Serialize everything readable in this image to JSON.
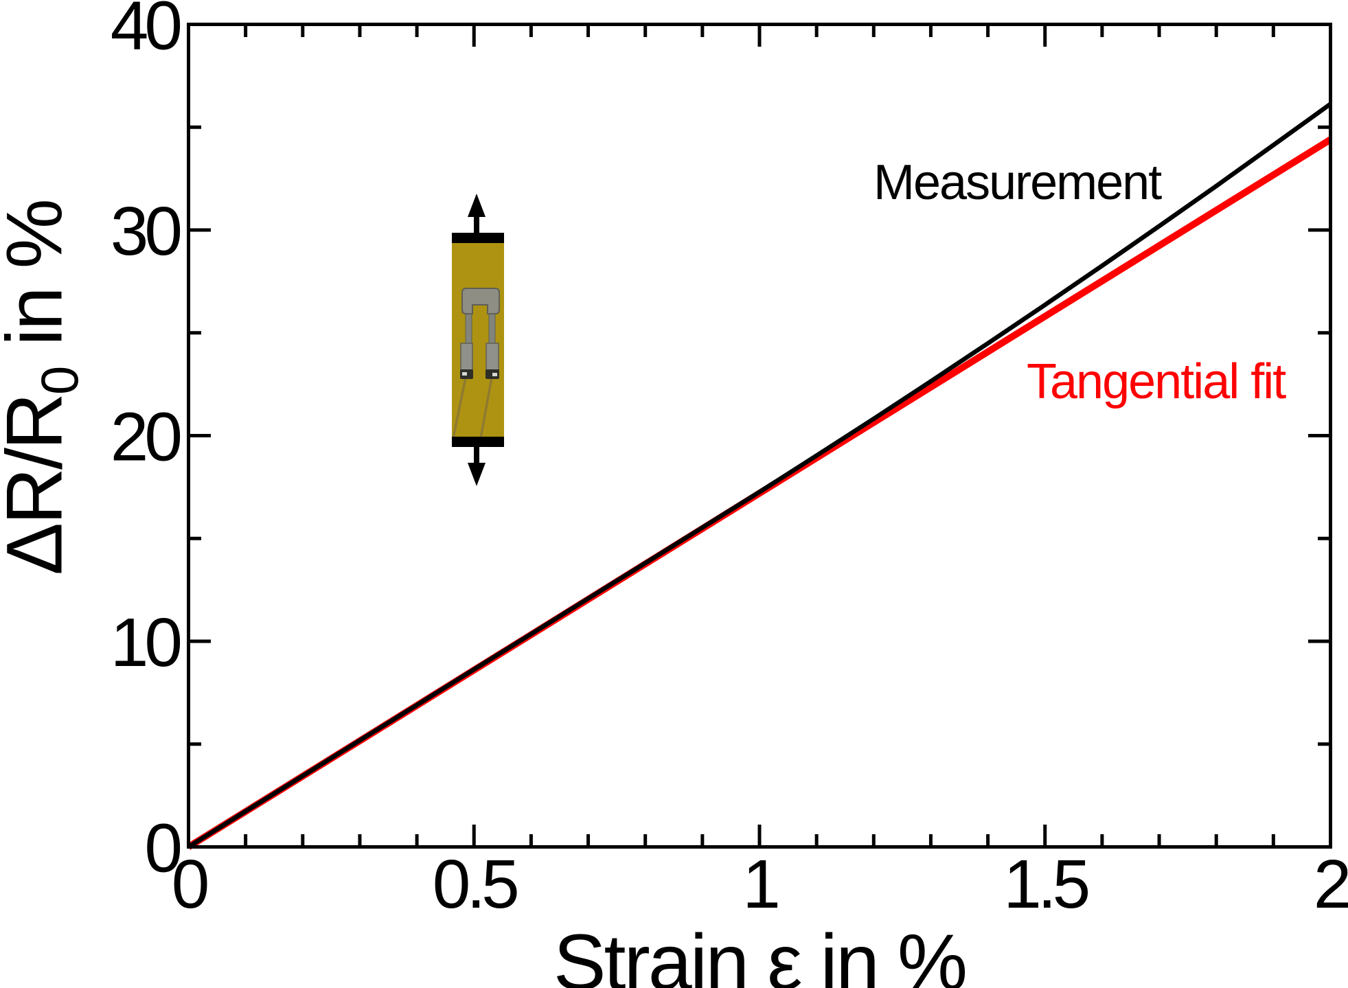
{
  "figure": {
    "background": "#ffffff",
    "accent_red": "#ff0000",
    "line_black": "#000000"
  },
  "chart_data": {
    "type": "line",
    "title": "",
    "xlabel": "Strain ε in %",
    "ylabel": {
      "main": "ΔR/R",
      "sub": "0",
      "rest": " in %"
    },
    "xlim": [
      0,
      2
    ],
    "ylim": [
      0,
      40
    ],
    "grid": false,
    "x_major_ticks": {
      "values": [
        0,
        0.5,
        1,
        1.5,
        2
      ],
      "labels": [
        "0",
        "0.5",
        "1",
        "1.5",
        "2"
      ]
    },
    "y_major_ticks": {
      "values": [
        0,
        10,
        20,
        30,
        40
      ],
      "labels": [
        "0",
        "10",
        "20",
        "30",
        "40"
      ]
    },
    "x_minor_step": 0.1,
    "y_minor_step": 5,
    "legend_position": "annotations inside plot, upper right area",
    "series": [
      {
        "name": "Measurement",
        "color": "#000000",
        "stroke_width": 6.5,
        "x": [
          0,
          0.1,
          0.2,
          0.3,
          0.4,
          0.5,
          0.6,
          0.7,
          0.8,
          0.9,
          1.0,
          1.1,
          1.2,
          1.3,
          1.4,
          1.5,
          1.6,
          1.7,
          1.8,
          1.9,
          2.0
        ],
        "y": [
          0,
          1.73,
          3.45,
          5.18,
          6.9,
          8.63,
          10.35,
          12.08,
          13.8,
          15.53,
          17.26,
          19.03,
          20.82,
          22.64,
          24.49,
          26.36,
          28.26,
          30.19,
          32.14,
          34.13,
          36.13
        ]
      },
      {
        "name": "Tangential fit",
        "color": "#ff0000",
        "stroke_width": 10,
        "x": [
          0,
          2
        ],
        "y": [
          0,
          34.4
        ]
      }
    ],
    "annotations": [
      {
        "text": "Measurement",
        "color": "#000000"
      },
      {
        "text": "Tangential fit",
        "color": "#ff0000"
      }
    ]
  },
  "inset": {
    "name": "strain-gauge-specimen-photo",
    "description_colors": {
      "substrate_yellow": "#ad9311",
      "clamp_black": "#000000",
      "element_gray": "#8e8e84",
      "terminal_dark": "#2e2e29",
      "wire_tan": "#8f7a30"
    }
  }
}
